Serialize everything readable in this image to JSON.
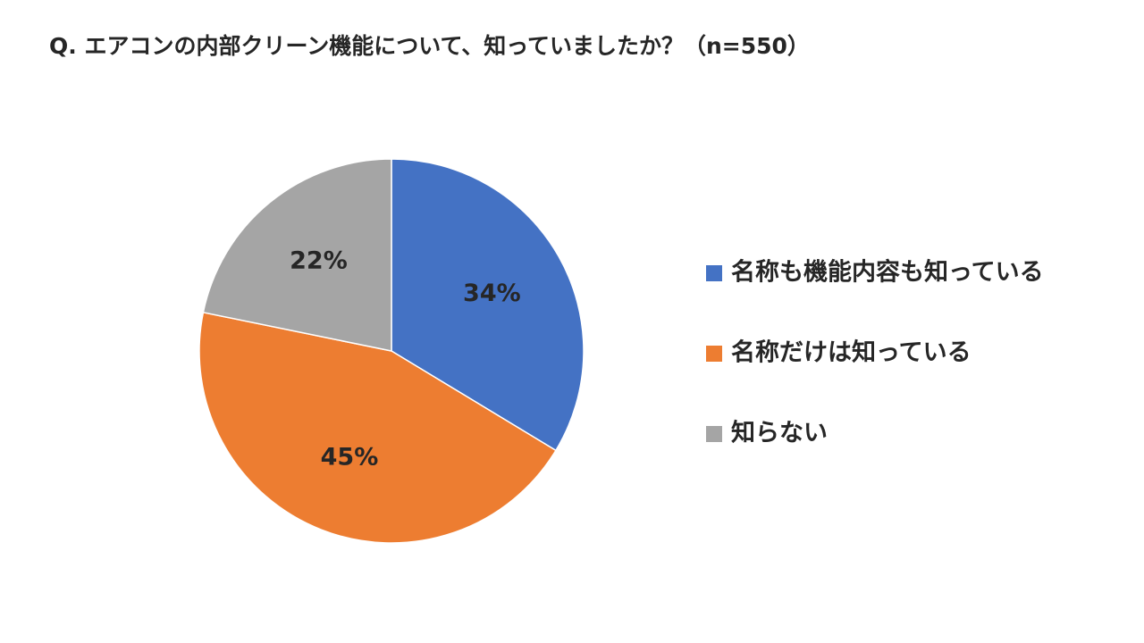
{
  "chart_data": {
    "type": "pie",
    "title": "Q. エアコンの内部クリーン機能について、知っていましたか？（n=550）",
    "categories": [
      "名称も機能内容も知っている",
      "名称だけは知っている",
      "知らない"
    ],
    "values": [
      34,
      45,
      22
    ],
    "value_labels": [
      "34%",
      "45%",
      "22%"
    ],
    "colors": [
      "#4472c4",
      "#ed7d31",
      "#a5a5a5"
    ],
    "legend": "right"
  }
}
